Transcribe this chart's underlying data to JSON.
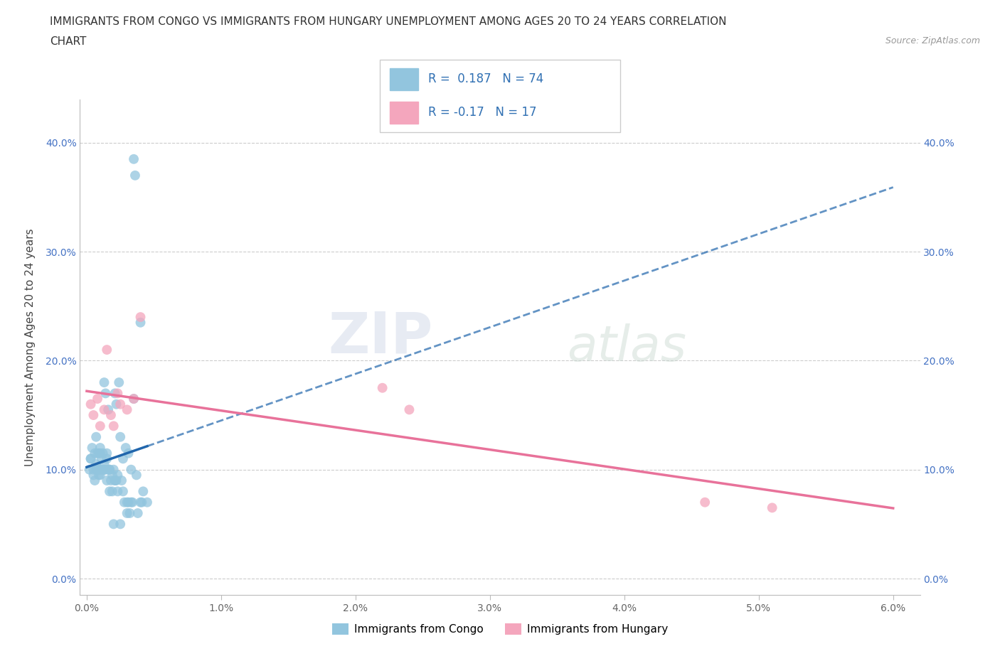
{
  "title_line1": "IMMIGRANTS FROM CONGO VS IMMIGRANTS FROM HUNGARY UNEMPLOYMENT AMONG AGES 20 TO 24 YEARS CORRELATION",
  "title_line2": "CHART",
  "source_text": "Source: ZipAtlas.com",
  "ylabel": "Unemployment Among Ages 20 to 24 years",
  "x_ticks": [
    0.0,
    0.01,
    0.02,
    0.03,
    0.04,
    0.05,
    0.06
  ],
  "x_tick_labels": [
    "0.0%",
    "1.0%",
    "2.0%",
    "3.0%",
    "4.0%",
    "5.0%",
    "6.0%"
  ],
  "y_ticks": [
    0.0,
    0.1,
    0.2,
    0.3,
    0.4
  ],
  "y_tick_labels": [
    "0.0%",
    "10.0%",
    "20.0%",
    "30.0%",
    "40.0%"
  ],
  "congo_color": "#92c5de",
  "hungary_color": "#f4a6bd",
  "congo_line_color": "#2166ac",
  "hungary_line_color": "#e8729a",
  "congo_R": 0.187,
  "congo_N": 74,
  "hungary_R": -0.17,
  "hungary_N": 17,
  "legend_bottom_labels": [
    "Immigrants from Congo",
    "Immigrants from Hungary"
  ],
  "watermark_part1": "ZIP",
  "watermark_part2": "atlas",
  "congo_scatter_x": [
    0.0002,
    0.0003,
    0.0004,
    0.0005,
    0.0006,
    0.0006,
    0.0007,
    0.0007,
    0.0008,
    0.0008,
    0.0009,
    0.0009,
    0.001,
    0.001,
    0.001,
    0.001,
    0.0012,
    0.0012,
    0.0013,
    0.0013,
    0.0014,
    0.0014,
    0.0015,
    0.0015,
    0.0016,
    0.0016,
    0.0017,
    0.0017,
    0.0018,
    0.0019,
    0.002,
    0.002,
    0.0021,
    0.0021,
    0.0022,
    0.0022,
    0.0023,
    0.0024,
    0.0025,
    0.0026,
    0.0027,
    0.0028,
    0.003,
    0.003,
    0.0031,
    0.0032,
    0.0033,
    0.0034,
    0.0035,
    0.0036,
    0.0038,
    0.004,
    0.0041,
    0.0042,
    0.0045,
    0.0003,
    0.0005,
    0.0007,
    0.0009,
    0.0011,
    0.0013,
    0.0015,
    0.0017,
    0.0019,
    0.0021,
    0.0023,
    0.0025,
    0.0027,
    0.0029,
    0.0031,
    0.0033,
    0.0035,
    0.0037,
    0.004
  ],
  "congo_scatter_y": [
    0.1,
    0.11,
    0.12,
    0.1,
    0.09,
    0.115,
    0.1,
    0.13,
    0.115,
    0.1,
    0.095,
    0.115,
    0.1,
    0.115,
    0.095,
    0.12,
    0.115,
    0.1,
    0.1,
    0.18,
    0.1,
    0.17,
    0.09,
    0.11,
    0.1,
    0.155,
    0.08,
    0.1,
    0.09,
    0.08,
    0.05,
    0.1,
    0.09,
    0.17,
    0.09,
    0.16,
    0.08,
    0.18,
    0.05,
    0.09,
    0.08,
    0.07,
    0.07,
    0.06,
    0.07,
    0.06,
    0.07,
    0.07,
    0.385,
    0.37,
    0.06,
    0.07,
    0.07,
    0.08,
    0.07,
    0.11,
    0.095,
    0.105,
    0.1,
    0.11,
    0.105,
    0.115,
    0.1,
    0.095,
    0.09,
    0.095,
    0.13,
    0.11,
    0.12,
    0.115,
    0.1,
    0.165,
    0.095,
    0.235
  ],
  "hungary_scatter_x": [
    0.0003,
    0.0005,
    0.0008,
    0.001,
    0.0013,
    0.0015,
    0.0018,
    0.002,
    0.0023,
    0.0025,
    0.003,
    0.0035,
    0.004,
    0.022,
    0.024,
    0.046,
    0.051
  ],
  "hungary_scatter_y": [
    0.16,
    0.15,
    0.165,
    0.14,
    0.155,
    0.21,
    0.15,
    0.14,
    0.17,
    0.16,
    0.155,
    0.165,
    0.24,
    0.175,
    0.155,
    0.07,
    0.065
  ]
}
